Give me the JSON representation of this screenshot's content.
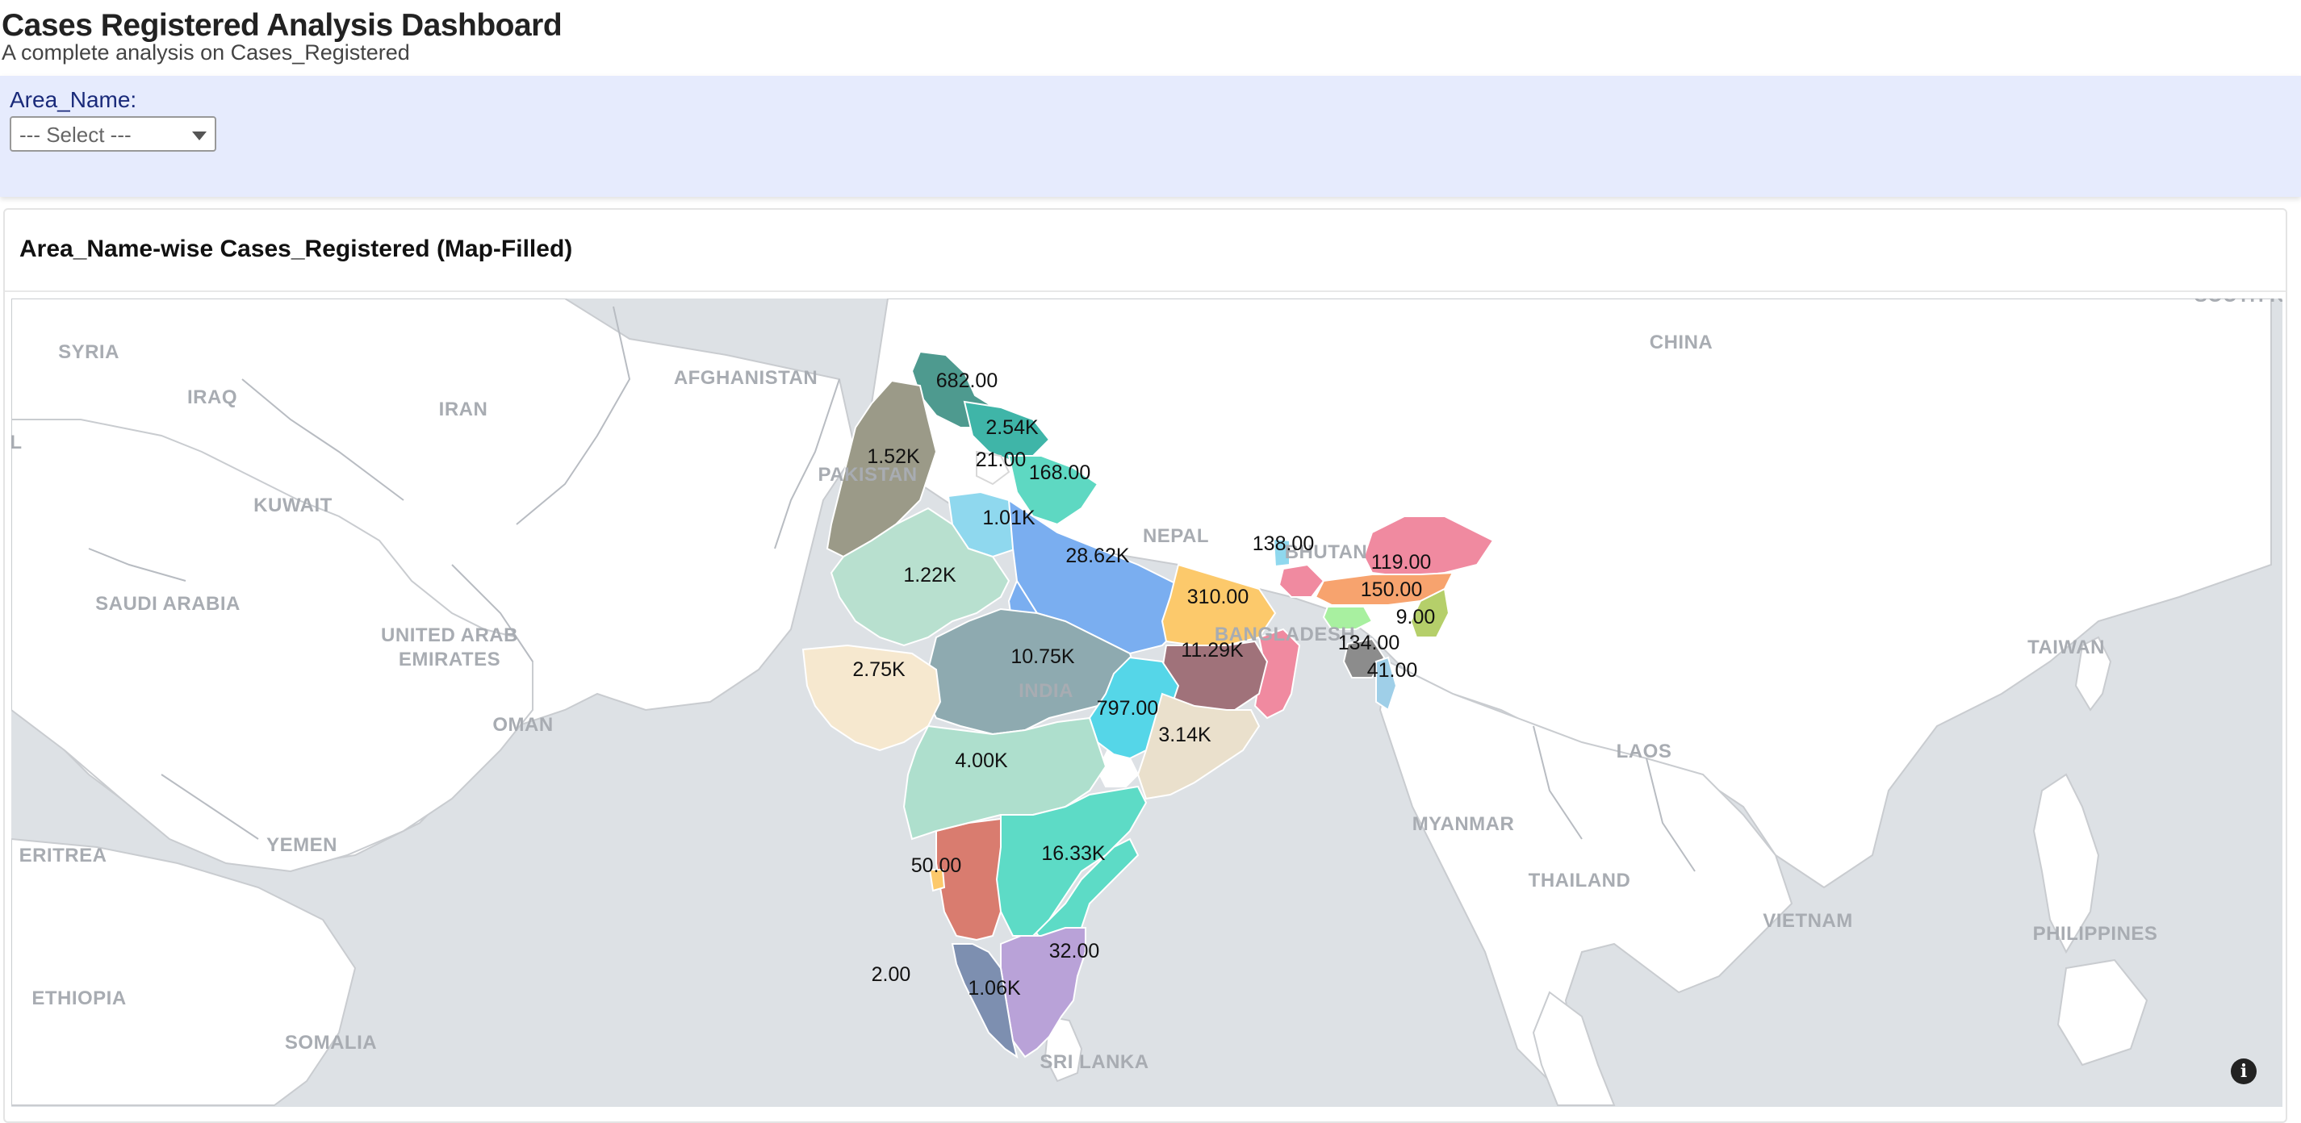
{
  "header": {
    "title": "Cases Registered Analysis Dashboard",
    "subtitle": "A complete analysis on Cases_Registered"
  },
  "filter": {
    "label": "Area_Name:",
    "select_value": "--- Select ---"
  },
  "panel": {
    "title": "Area_Name-wise Cases_Registered (Map-Filled)",
    "info_icon": "info-icon"
  },
  "chart_data": {
    "type": "choropleth",
    "title": "Area_Name-wise Cases_Registered (Map-Filled)",
    "base_map_labels": [
      "SYRIA",
      "IRAQ",
      "IRAN",
      "AFGHANISTAN",
      "PAKISTAN",
      "KUWAIT",
      "SAUDI ARABIA",
      "UNITED ARAB",
      "EMIRATES",
      "OMAN",
      "YEMEN",
      "ERITREA",
      "ETHIOPIA",
      "SOMALIA",
      "CHINA",
      "NEPAL",
      "BHUTAN",
      "BANGLADESH",
      "INDIA",
      "MYANMAR",
      "THAILAND",
      "LAOS",
      "VIETNAM",
      "TAIWAN",
      "PHILIPPINES",
      "SRI LANKA",
      "SOUTH KOR",
      "L"
    ],
    "regions": [
      {
        "label": "682.00",
        "color": "#4e9a8f"
      },
      {
        "label": "2.54K",
        "color": "#3fb5a8"
      },
      {
        "label": "1.52K",
        "color": "#9b9a88"
      },
      {
        "label": "21.00",
        "color": "#ffffff"
      },
      {
        "label": "168.00",
        "color": "#5ed8c2"
      },
      {
        "label": "1.01K",
        "color": "#8fd8ee"
      },
      {
        "label": "28.62K",
        "color": "#7aaef0"
      },
      {
        "label": "1.22K",
        "color": "#b8e0cf"
      },
      {
        "label": "138.00",
        "color": "#8fd8ee"
      },
      {
        "label": "119.00",
        "color": "#f08aa0"
      },
      {
        "label": "150.00",
        "color": "#f7a36e"
      },
      {
        "label": "9.00",
        "color": "#b5cf6a"
      },
      {
        "label": "310.00",
        "color": "#fcc96b"
      },
      {
        "label": "134.00",
        "color": "#8c8c8c"
      },
      {
        "label": "41.00",
        "color": "#9fcfe8"
      },
      {
        "label": "10.75K",
        "color": "#8eaab0"
      },
      {
        "label": "11.29K",
        "color": "#a0727a"
      },
      {
        "label": "2.75K",
        "color": "#f6e8cf"
      },
      {
        "label": "797.00",
        "color": "#55d6e8"
      },
      {
        "label": "3.14K",
        "color": "#eae0cc"
      },
      {
        "label": "4.00K",
        "color": "#aedfcd"
      },
      {
        "label": "16.33K",
        "color": "#5ddbc6"
      },
      {
        "label": "50.00",
        "color": "#fcc96b"
      },
      {
        "label": "32.00",
        "color": "#b9a2d8"
      },
      {
        "label": "2.00",
        "color": "#ffffff"
      },
      {
        "label": "1.06K",
        "color": "#7d8fb0"
      }
    ]
  }
}
